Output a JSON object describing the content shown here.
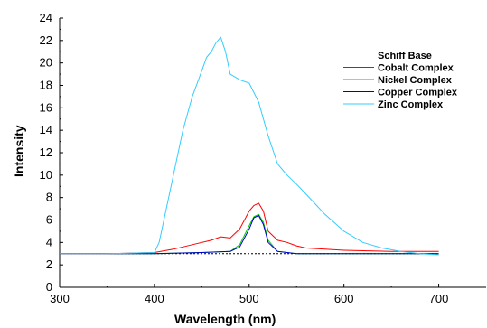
{
  "chart_data": {
    "type": "line",
    "xlabel": "Wavelength (nm)",
    "ylabel": "Intensity",
    "xlim": [
      300,
      750
    ],
    "ylim": [
      0,
      24
    ],
    "xticks": [
      300,
      400,
      500,
      600,
      700
    ],
    "xtick_labels": [
      "300",
      "400",
      "500",
      "600",
      "700"
    ],
    "yticks": [
      0,
      2,
      4,
      6,
      8,
      10,
      12,
      14,
      16,
      18,
      20,
      22,
      24
    ],
    "ytick_labels": [
      "0",
      "2",
      "4",
      "6",
      "8",
      "10",
      "12",
      "14",
      "16",
      "18",
      "20",
      "22",
      "24"
    ],
    "grid": false,
    "legend_position": "top-right",
    "series": [
      {
        "name": "Schiff Base",
        "color": "#000000",
        "dashed": true,
        "x": [
          300,
          350,
          400,
          450,
          500,
          540,
          550,
          600,
          650,
          700
        ],
        "y": [
          3.0,
          3.0,
          3.0,
          3.0,
          3.0,
          3.0,
          3.0,
          3.0,
          3.0,
          3.0
        ]
      },
      {
        "name": "Cobalt Complex",
        "color": "#ff0000",
        "x": [
          300,
          350,
          400,
          420,
          440,
          460,
          470,
          480,
          490,
          500,
          505,
          510,
          515,
          520,
          530,
          540,
          550,
          560,
          580,
          600,
          650,
          700
        ],
        "y": [
          3.0,
          3.0,
          3.1,
          3.4,
          3.8,
          4.2,
          4.5,
          4.4,
          5.2,
          6.8,
          7.3,
          7.5,
          6.8,
          5.0,
          4.2,
          4.0,
          3.7,
          3.5,
          3.4,
          3.3,
          3.2,
          3.2
        ]
      },
      {
        "name": "Nickel Complex",
        "color": "#00cc00",
        "x": [
          300,
          350,
          400,
          450,
          480,
          490,
          500,
          505,
          510,
          515,
          520,
          530,
          540,
          550,
          600,
          650,
          700
        ],
        "y": [
          3.0,
          3.0,
          3.0,
          3.1,
          3.2,
          3.8,
          5.5,
          6.3,
          6.5,
          5.8,
          4.2,
          3.2,
          3.1,
          3.0,
          3.0,
          3.0,
          3.0
        ]
      },
      {
        "name": "Copper Complex",
        "color": "#0000cc",
        "x": [
          300,
          350,
          400,
          450,
          480,
          490,
          500,
          505,
          510,
          515,
          520,
          530,
          540,
          550,
          600,
          650,
          700
        ],
        "y": [
          3.0,
          3.0,
          3.0,
          3.1,
          3.2,
          3.6,
          5.2,
          6.2,
          6.4,
          5.6,
          4.0,
          3.2,
          3.1,
          3.0,
          3.0,
          3.0,
          3.0
        ]
      },
      {
        "name": "Zinc Complex",
        "color": "#33ccff",
        "x": [
          300,
          350,
          400,
          405,
          410,
          420,
          430,
          440,
          450,
          455,
          460,
          465,
          470,
          475,
          480,
          490,
          500,
          510,
          520,
          530,
          540,
          550,
          560,
          580,
          600,
          620,
          640,
          660,
          680,
          700
        ],
        "y": [
          3.0,
          3.0,
          3.1,
          4.0,
          6.0,
          10.0,
          14.0,
          17.0,
          19.3,
          20.5,
          21.0,
          21.8,
          22.3,
          21.0,
          19.0,
          18.5,
          18.2,
          16.5,
          13.5,
          11.0,
          10.0,
          9.2,
          8.3,
          6.5,
          5.0,
          4.0,
          3.5,
          3.2,
          3.0,
          2.9
        ]
      }
    ]
  }
}
